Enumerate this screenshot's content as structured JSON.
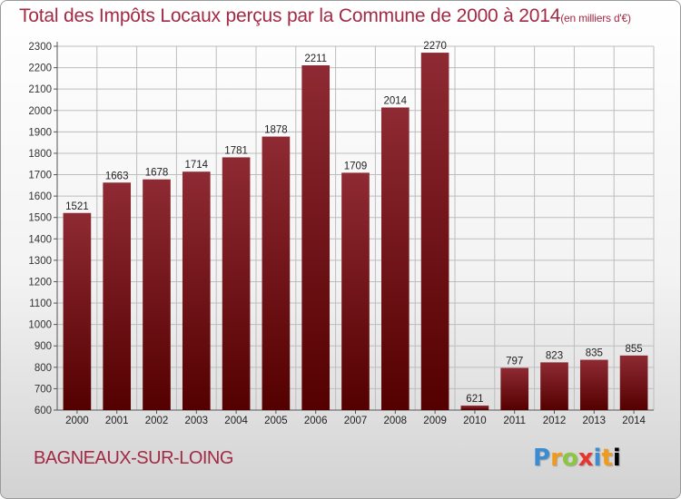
{
  "title": "Total des Impôts Locaux perçus par la Commune de 2000 à 2014",
  "title_unit": "(en milliers d'€)",
  "commune": "BAGNEAUX-SUR-LOING",
  "logo": {
    "text": "Proxiti",
    "letters": [
      "P",
      "r",
      "o",
      "x",
      "i",
      "t",
      "i"
    ]
  },
  "colors": {
    "title": "#a22a45",
    "bar_top": "#8e2a33",
    "bar_bottom": "#540000"
  },
  "chart_data": {
    "type": "bar",
    "title": "Total des Impôts Locaux perçus par la Commune de 2000 à 2014",
    "xlabel": "",
    "ylabel": "",
    "categories": [
      "2000",
      "2001",
      "2002",
      "2003",
      "2004",
      "2005",
      "2006",
      "2007",
      "2008",
      "2009",
      "2010",
      "2011",
      "2012",
      "2013",
      "2014"
    ],
    "values": [
      1521,
      1663,
      1678,
      1714,
      1781,
      1878,
      2211,
      1709,
      2014,
      2270,
      621,
      797,
      823,
      835,
      855
    ],
    "ylim": [
      600,
      2300
    ],
    "yticks": [
      600,
      700,
      800,
      900,
      1000,
      1100,
      1200,
      1300,
      1400,
      1500,
      1600,
      1700,
      1800,
      1900,
      2000,
      2100,
      2200,
      2300
    ],
    "grid": true
  }
}
